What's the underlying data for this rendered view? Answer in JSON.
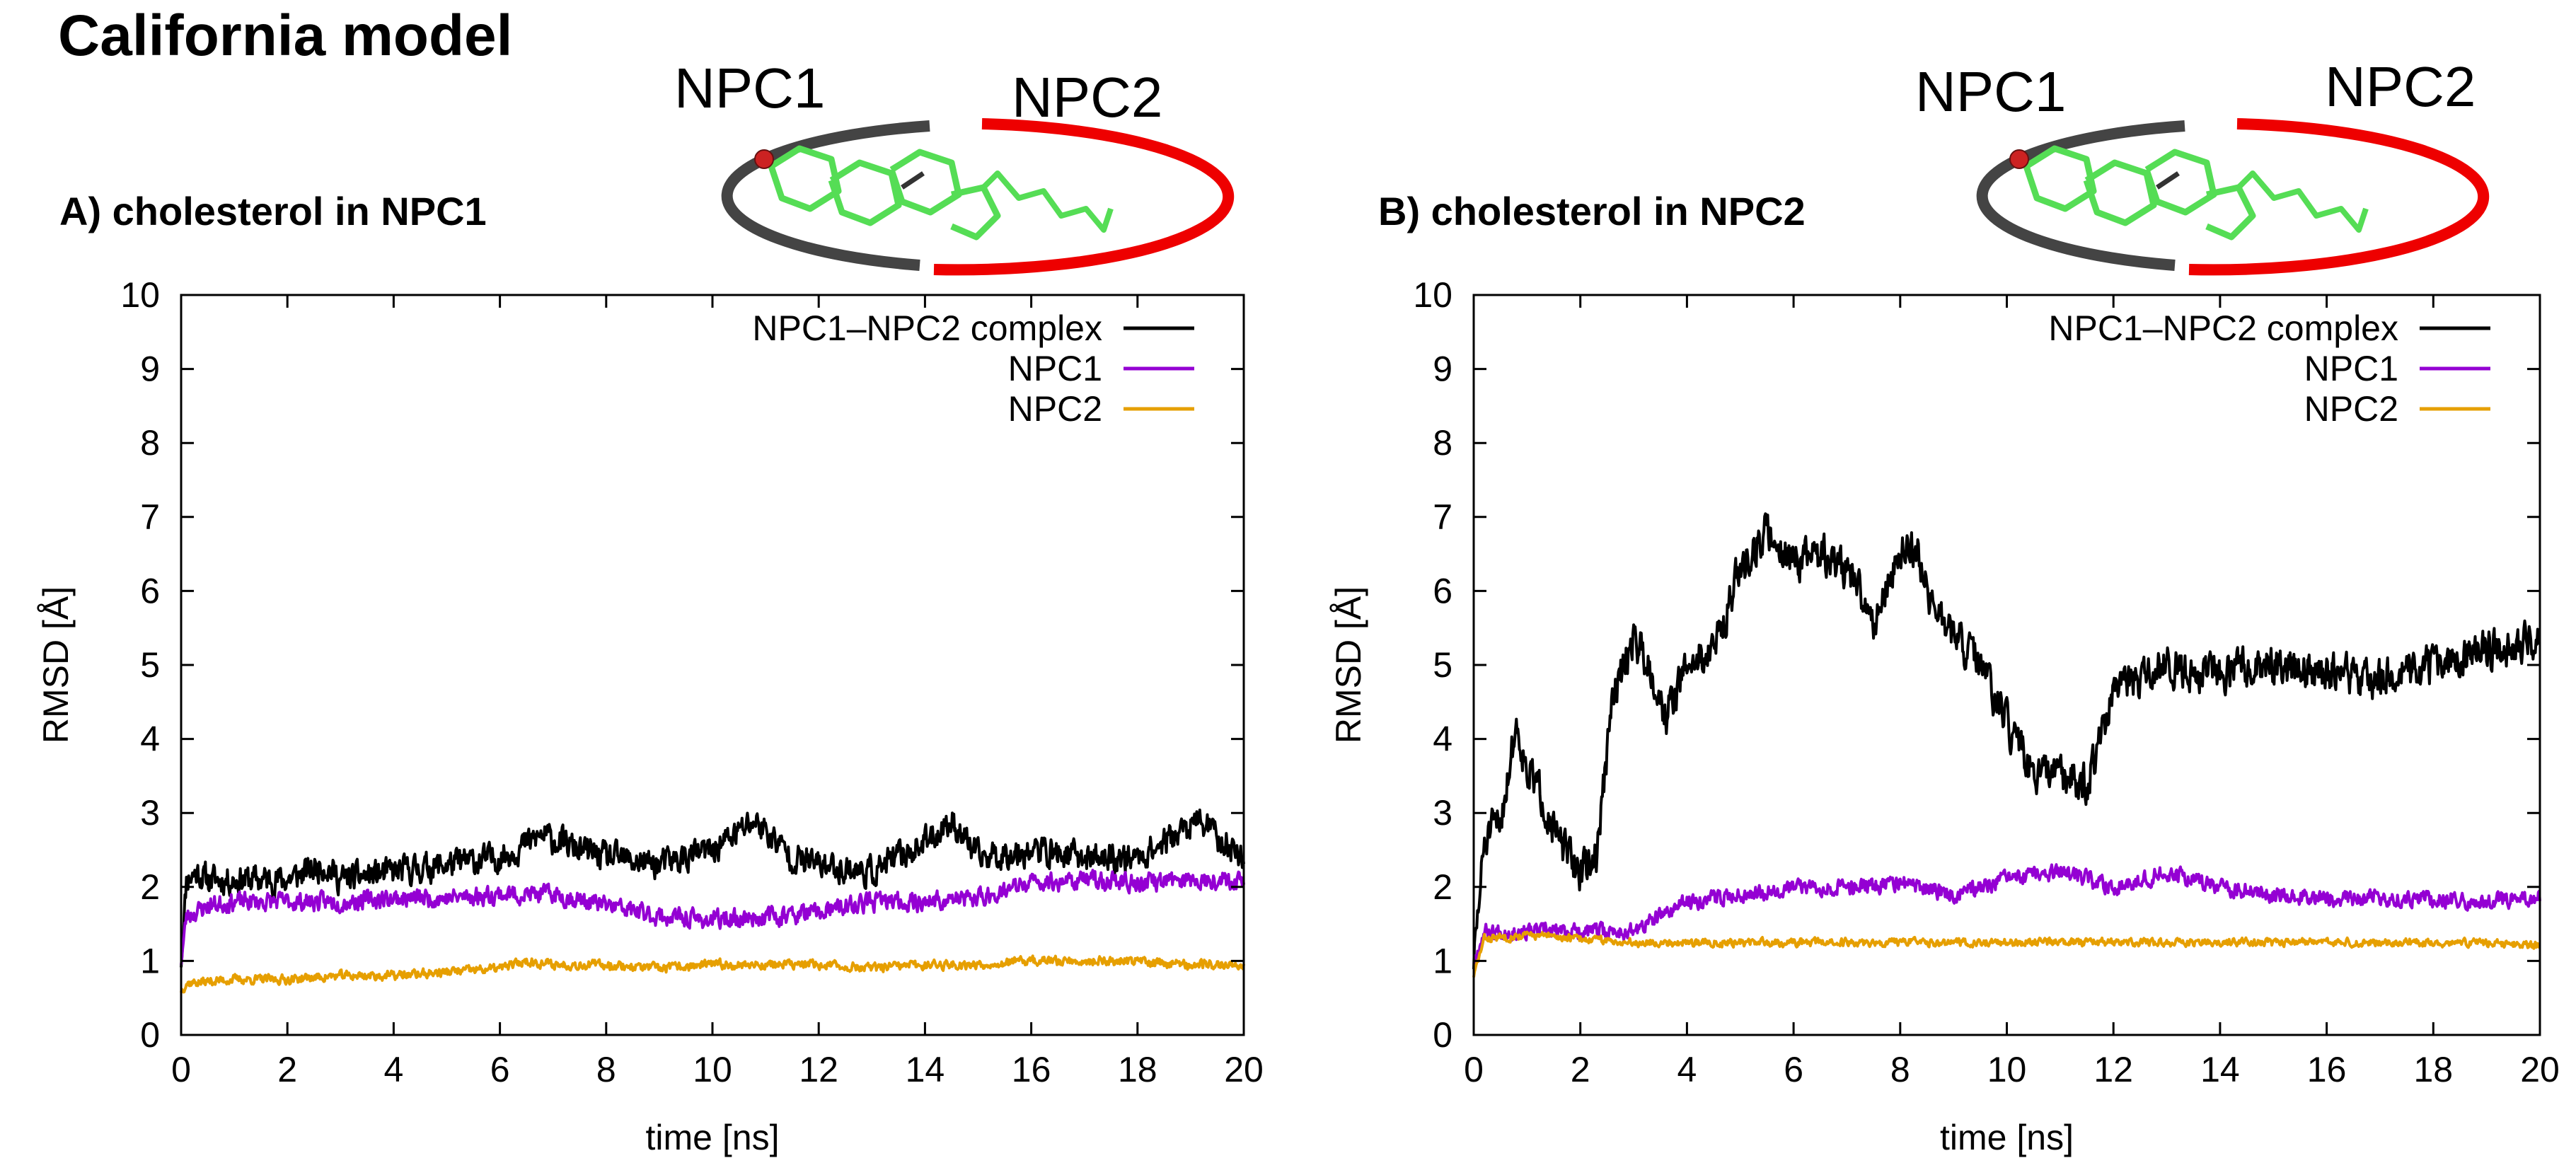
{
  "figure": {
    "title": "California model",
    "colors": {
      "complex": "#000000",
      "npc1": "#9400d3",
      "npc2": "#e69f00",
      "ring_npc1": "#444444",
      "ring_npc2": "#ee0000",
      "cholesterol": "#55dd55",
      "oxygen": "#cc2222"
    }
  },
  "chart_data": [
    {
      "type": "line",
      "panel_title": "A) cholesterol in NPC1",
      "schematic": {
        "left_label": "NPC1",
        "right_label": "NPC2"
      },
      "xlabel": "time [ns]",
      "ylabel": "RMSD  [Å]",
      "xlim": [
        0,
        20
      ],
      "ylim": [
        0,
        10
      ],
      "xticks": [
        "0",
        "2",
        "4",
        "6",
        "8",
        "10",
        "12",
        "14",
        "16",
        "18",
        "20"
      ],
      "yticks": [
        "0",
        "1",
        "2",
        "3",
        "4",
        "5",
        "6",
        "7",
        "8",
        "9",
        "10"
      ],
      "legend_position": "top-right",
      "series": [
        {
          "name": "NPC1–NPC2 complex",
          "color_key": "complex",
          "noise": 0.22,
          "seed": 11,
          "x": [
            0,
            0.1,
            0.3,
            0.5,
            1,
            2,
            2.7,
            3,
            4,
            5,
            6,
            6.8,
            7.5,
            8,
            9,
            10,
            10.8,
            11.5,
            12,
            13,
            14,
            14.5,
            15,
            16,
            17,
            18,
            19.2,
            19.6,
            20
          ],
          "y": [
            1.0,
            2.1,
            2.2,
            2.1,
            2.1,
            2.1,
            2.3,
            2.1,
            2.2,
            2.3,
            2.4,
            2.7,
            2.5,
            2.4,
            2.3,
            2.5,
            2.9,
            2.4,
            2.3,
            2.2,
            2.6,
            2.9,
            2.4,
            2.5,
            2.4,
            2.4,
            2.9,
            2.6,
            2.4
          ]
        },
        {
          "name": "NPC1",
          "color_key": "npc1",
          "noise": 0.14,
          "seed": 23,
          "x": [
            0,
            0.1,
            0.5,
            1,
            2,
            3,
            4,
            5,
            6,
            7,
            8,
            9,
            10,
            11,
            12,
            13,
            14,
            15,
            16,
            17,
            18,
            19,
            20
          ],
          "y": [
            1.0,
            1.6,
            1.75,
            1.8,
            1.8,
            1.8,
            1.85,
            1.85,
            1.9,
            1.9,
            1.75,
            1.6,
            1.55,
            1.6,
            1.65,
            1.8,
            1.8,
            1.85,
            2.05,
            2.1,
            2.05,
            2.1,
            2.1
          ]
        },
        {
          "name": "NPC2",
          "color_key": "npc2",
          "noise": 0.07,
          "seed": 37,
          "x": [
            0,
            0.1,
            1,
            2,
            3,
            4,
            5,
            6,
            6.5,
            7,
            8,
            9,
            10,
            11,
            12,
            13,
            14,
            15,
            16,
            17,
            18,
            19,
            20
          ],
          "y": [
            0.6,
            0.7,
            0.75,
            0.75,
            0.8,
            0.8,
            0.85,
            0.9,
            1.0,
            0.95,
            0.95,
            0.9,
            0.95,
            0.95,
            0.95,
            0.9,
            0.95,
            0.95,
            1.0,
            1.0,
            1.0,
            0.95,
            0.95
          ]
        }
      ]
    },
    {
      "type": "line",
      "panel_title": "B) cholesterol in NPC2",
      "schematic": {
        "left_label": "NPC1",
        "right_label": "NPC2"
      },
      "xlabel": "time [ns]",
      "ylabel": "RMSD  [Å]",
      "xlim": [
        0,
        20
      ],
      "ylim": [
        0,
        10
      ],
      "xticks": [
        "0",
        "2",
        "4",
        "6",
        "8",
        "10",
        "12",
        "14",
        "16",
        "18",
        "20"
      ],
      "yticks": [
        "0",
        "1",
        "2",
        "3",
        "4",
        "5",
        "6",
        "7",
        "8",
        "9",
        "10"
      ],
      "legend_position": "top-right",
      "series": [
        {
          "name": "NPC1–NPC2 complex",
          "color_key": "complex",
          "noise": 0.3,
          "seed": 51,
          "x": [
            0,
            0.2,
            0.5,
            0.8,
            1.0,
            1.3,
            1.6,
            2.0,
            2.3,
            2.6,
            3.0,
            3.3,
            3.6,
            4.0,
            4.5,
            5.0,
            5.5,
            6.0,
            6.5,
            7.0,
            7.5,
            8.0,
            8.3,
            8.6,
            9.0,
            9.5,
            10.0,
            10.5,
            11.0,
            11.5,
            12.0,
            12.5,
            13.0,
            14.0,
            15.0,
            16.0,
            17.0,
            18.0,
            19.0,
            20.0
          ],
          "y": [
            1.0,
            2.6,
            2.9,
            4.2,
            3.6,
            3.2,
            2.6,
            2.2,
            2.4,
            4.5,
            5.4,
            5.0,
            4.3,
            5.0,
            5.2,
            6.3,
            6.8,
            6.4,
            6.5,
            6.3,
            5.6,
            6.5,
            6.6,
            5.8,
            5.4,
            5.0,
            4.2,
            3.5,
            3.5,
            3.4,
            4.6,
            4.8,
            5.0,
            4.9,
            5.0,
            4.9,
            4.8,
            5.0,
            5.2,
            5.3
          ]
        },
        {
          "name": "NPC1",
          "color_key": "npc1",
          "noise": 0.12,
          "seed": 67,
          "x": [
            0,
            0.2,
            1,
            2,
            3,
            3.5,
            4,
            5,
            6,
            7,
            8,
            9,
            10,
            11,
            12,
            13,
            14,
            15,
            16,
            17,
            18,
            19,
            20
          ],
          "y": [
            1.0,
            1.4,
            1.4,
            1.4,
            1.4,
            1.6,
            1.8,
            1.9,
            2.0,
            2.0,
            2.05,
            1.9,
            2.1,
            2.2,
            2.0,
            2.2,
            2.0,
            1.9,
            1.85,
            1.85,
            1.85,
            1.8,
            1.85
          ]
        },
        {
          "name": "NPC2",
          "color_key": "npc2",
          "noise": 0.06,
          "seed": 83,
          "x": [
            0,
            0.2,
            1,
            2,
            3,
            4,
            5,
            6,
            7,
            8,
            9,
            10,
            11,
            12,
            13,
            14,
            15,
            16,
            17,
            18,
            19,
            20
          ],
          "y": [
            0.8,
            1.3,
            1.35,
            1.3,
            1.25,
            1.25,
            1.25,
            1.25,
            1.25,
            1.25,
            1.25,
            1.25,
            1.25,
            1.25,
            1.25,
            1.25,
            1.25,
            1.25,
            1.25,
            1.25,
            1.25,
            1.2
          ]
        }
      ]
    }
  ]
}
